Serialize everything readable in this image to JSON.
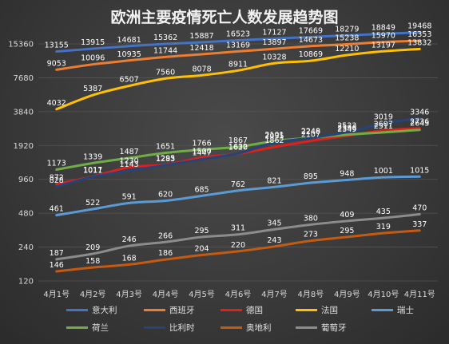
{
  "chart_data": {
    "type": "line",
    "title": "欧洲主要疫情死亡人数发展趋势图",
    "xlabel": "",
    "ylabel": "",
    "y_scale": "log2",
    "ylim": [
      120,
      15360
    ],
    "yticks": [
      120,
      240,
      480,
      960,
      1920,
      3840,
      7680,
      15360
    ],
    "grid": true,
    "legend_position": "bottom",
    "categories": [
      "4月1号",
      "4月2号",
      "4月3号",
      "4月4号",
      "4月5号",
      "4月6号",
      "4月7号",
      "4月8号",
      "4月9号",
      "4月10号",
      "4月11号"
    ],
    "series": [
      {
        "name": "意大利",
        "color": "#4472C4",
        "values": [
          13155,
          13915,
          14681,
          15362,
          15887,
          16523,
          17127,
          17669,
          18279,
          18849,
          19468
        ]
      },
      {
        "name": "西班牙",
        "color": "#ED7D31",
        "values": [
          9053,
          10096,
          10935,
          11744,
          12418,
          13169,
          13897,
          14673,
          15238,
          15970,
          16353
        ]
      },
      {
        "name": "德国",
        "color": "#E0201B",
        "values": [
          872,
          1017,
          1230,
          1295,
          1500,
          1620,
          1862,
          2107,
          2349,
          2607,
          2736
        ]
      },
      {
        "name": "法国",
        "color": "#FFC000",
        "values": [
          4032,
          5387,
          6507,
          7560,
          8078,
          8911,
          10328,
          10869,
          12210,
          13197,
          13832
        ]
      },
      {
        "name": "瑞士",
        "color": "#5B9BD5",
        "values": [
          461,
          522,
          591,
          620,
          685,
          762,
          821,
          895,
          948,
          1001,
          1015
        ]
      },
      {
        "name": "荷兰",
        "color": "#70AD47",
        "values": [
          1173,
          1339,
          1487,
          1651,
          1766,
          1867,
          2101,
          2248,
          2396,
          2511,
          2643
        ]
      },
      {
        "name": "比利时",
        "color": "#264478",
        "values": [
          828,
          1011,
          1143,
          1283,
          1447,
          1632,
          2035,
          2240,
          2523,
          3019,
          3346
        ]
      },
      {
        "name": "奥地利",
        "color": "#C55A11",
        "values": [
          146,
          158,
          168,
          186,
          204,
          220,
          243,
          273,
          295,
          319,
          337
        ]
      },
      {
        "name": "葡萄牙",
        "color": "#8C8C8C",
        "values": [
          187,
          209,
          246,
          266,
          295,
          311,
          345,
          380,
          409,
          435,
          470
        ]
      }
    ]
  }
}
